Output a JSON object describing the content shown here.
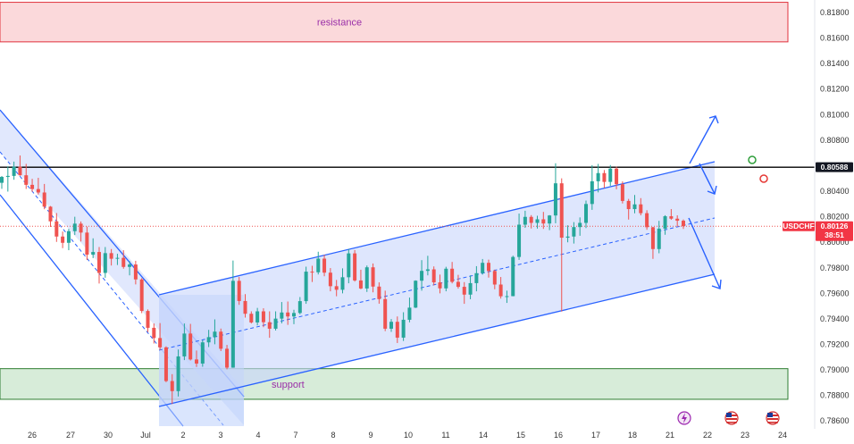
{
  "chart_data": {
    "type": "candlestick",
    "symbol": "USDCHF",
    "current_price": "0.80126",
    "countdown": "38:51",
    "key_level": "0.80588",
    "y_range": [
      0.7856,
      0.819
    ],
    "y_ticks": [
      "0.81800",
      "0.81600",
      "0.81400",
      "0.81200",
      "0.81000",
      "0.80800",
      "0.80600",
      "0.80400",
      "0.80200",
      "0.80000",
      "0.79800",
      "0.79600",
      "0.79400",
      "0.79200",
      "0.79000",
      "0.78800",
      "0.78600"
    ],
    "x_labels": [
      "26",
      "27",
      "30",
      "Jul",
      "2",
      "3",
      "4",
      "7",
      "8",
      "9",
      "10",
      "11",
      "14",
      "15",
      "16",
      "17",
      "18",
      "21",
      "22",
      "23",
      "24"
    ],
    "zones": {
      "resistance": {
        "label": "resistance",
        "low": 0.8157,
        "high": 0.8188
      },
      "support": {
        "label": "support",
        "low": 0.7877,
        "high": 0.7901
      }
    },
    "colors": {
      "up": "#26a69a",
      "down": "#ef5350",
      "channel": "#2962ff",
      "channel_fill": "#dbe5ff",
      "resistance_fill": "#fbd9db",
      "support_fill": "#d7ecd9",
      "tag": "#f23645",
      "level_tag": "#131722"
    },
    "candles": [
      [
        0.80466,
        0.80519,
        0.80419,
        0.80512
      ],
      [
        0.80512,
        0.80595,
        0.80397,
        0.8052
      ],
      [
        0.8052,
        0.80632,
        0.8049,
        0.80592
      ],
      [
        0.80592,
        0.8068,
        0.80521,
        0.80525
      ],
      [
        0.80525,
        0.80614,
        0.80418,
        0.8045
      ],
      [
        0.8045,
        0.80497,
        0.80396,
        0.80417
      ],
      [
        0.80417,
        0.80505,
        0.80374,
        0.8039
      ],
      [
        0.8039,
        0.80457,
        0.80259,
        0.80279
      ],
      [
        0.80279,
        0.80284,
        0.8012,
        0.80164
      ],
      [
        0.80164,
        0.80229,
        0.80003,
        0.80045
      ],
      [
        0.80045,
        0.80084,
        0.79954,
        0.79996
      ],
      [
        0.79996,
        0.80105,
        0.79938,
        0.80087
      ],
      [
        0.80087,
        0.802,
        0.80057,
        0.80146
      ],
      [
        0.80146,
        0.80163,
        0.80006,
        0.80076
      ],
      [
        0.80076,
        0.80123,
        0.79861,
        0.79903
      ],
      [
        0.79903,
        0.80031,
        0.79876,
        0.79924
      ],
      [
        0.79924,
        0.79963,
        0.79677,
        0.7976
      ],
      [
        0.7976,
        0.79963,
        0.79722,
        0.79915
      ],
      [
        0.79915,
        0.79947,
        0.79818,
        0.79871
      ],
      [
        0.79871,
        0.7991,
        0.79822,
        0.79878
      ],
      [
        0.79878,
        0.79938,
        0.79793,
        0.79807
      ],
      [
        0.79807,
        0.79853,
        0.79741,
        0.79826
      ],
      [
        0.79826,
        0.79855,
        0.7967,
        0.79709
      ],
      [
        0.79709,
        0.79719,
        0.79445,
        0.79462
      ],
      [
        0.79462,
        0.79474,
        0.79296,
        0.7933
      ],
      [
        0.7933,
        0.79364,
        0.79207,
        0.7925
      ],
      [
        0.7925,
        0.79367,
        0.79155,
        0.79177
      ],
      [
        0.79177,
        0.79185,
        0.78904,
        0.78913
      ],
      [
        0.78913,
        0.78967,
        0.78733,
        0.78834
      ],
      [
        0.78834,
        0.7916,
        0.78792,
        0.79106
      ],
      [
        0.79106,
        0.79364,
        0.79077,
        0.79285
      ],
      [
        0.79285,
        0.79361,
        0.79074,
        0.79082
      ],
      [
        0.79082,
        0.79152,
        0.79023,
        0.7905
      ],
      [
        0.7905,
        0.79235,
        0.79025,
        0.79216
      ],
      [
        0.79216,
        0.79314,
        0.79179,
        0.79257
      ],
      [
        0.79257,
        0.79396,
        0.79201,
        0.793
      ],
      [
        0.793,
        0.79324,
        0.79148,
        0.79166
      ],
      [
        0.79166,
        0.79196,
        0.79005,
        0.79018
      ],
      [
        0.79018,
        0.79857,
        0.79017,
        0.79698
      ],
      [
        0.79698,
        0.79728,
        0.7951,
        0.7954
      ],
      [
        0.7954,
        0.79594,
        0.7941,
        0.7944
      ],
      [
        0.7944,
        0.79459,
        0.79364,
        0.79372
      ],
      [
        0.79372,
        0.79486,
        0.79349,
        0.79459
      ],
      [
        0.79459,
        0.79483,
        0.79335,
        0.79374
      ],
      [
        0.79374,
        0.79459,
        0.79252,
        0.79323
      ],
      [
        0.79323,
        0.79459,
        0.79309,
        0.79402
      ],
      [
        0.79402,
        0.79532,
        0.79365,
        0.7945
      ],
      [
        0.7945,
        0.79536,
        0.79353,
        0.79419
      ],
      [
        0.79419,
        0.79471,
        0.79358,
        0.79446
      ],
      [
        0.79446,
        0.79571,
        0.79436,
        0.79539
      ],
      [
        0.79539,
        0.79809,
        0.79518,
        0.7977
      ],
      [
        0.7977,
        0.79816,
        0.79689,
        0.79765
      ],
      [
        0.79765,
        0.79926,
        0.79748,
        0.79872
      ],
      [
        0.79872,
        0.79902,
        0.79734,
        0.79762
      ],
      [
        0.79762,
        0.79798,
        0.79616,
        0.79656
      ],
      [
        0.79656,
        0.79705,
        0.79577,
        0.79628
      ],
      [
        0.79628,
        0.79796,
        0.796,
        0.79726
      ],
      [
        0.79726,
        0.79948,
        0.79679,
        0.79913
      ],
      [
        0.79913,
        0.79939,
        0.79692,
        0.79701
      ],
      [
        0.79701,
        0.79785,
        0.79632,
        0.79638
      ],
      [
        0.79638,
        0.79818,
        0.79611,
        0.79804
      ],
      [
        0.79804,
        0.79834,
        0.79608,
        0.79653
      ],
      [
        0.79653,
        0.79686,
        0.79519,
        0.79555
      ],
      [
        0.79555,
        0.79621,
        0.79304,
        0.79323
      ],
      [
        0.79323,
        0.79399,
        0.79298,
        0.79377
      ],
      [
        0.79377,
        0.79419,
        0.79211,
        0.79253
      ],
      [
        0.79253,
        0.79452,
        0.79227,
        0.79393
      ],
      [
        0.79393,
        0.79567,
        0.79373,
        0.79488
      ],
      [
        0.79488,
        0.79702,
        0.79485,
        0.79699
      ],
      [
        0.79699,
        0.7986,
        0.79621,
        0.79776
      ],
      [
        0.79776,
        0.79894,
        0.79741,
        0.79788
      ],
      [
        0.79788,
        0.79811,
        0.79662,
        0.79686
      ],
      [
        0.79686,
        0.79747,
        0.796,
        0.79639
      ],
      [
        0.79639,
        0.79808,
        0.79616,
        0.79793
      ],
      [
        0.79793,
        0.79846,
        0.79678,
        0.7969
      ],
      [
        0.7969,
        0.79745,
        0.79637,
        0.79651
      ],
      [
        0.79651,
        0.79688,
        0.79518,
        0.7959
      ],
      [
        0.7959,
        0.79741,
        0.79554,
        0.7968
      ],
      [
        0.7968,
        0.79813,
        0.79616,
        0.79758
      ],
      [
        0.79758,
        0.79869,
        0.79747,
        0.79839
      ],
      [
        0.79839,
        0.79864,
        0.79723,
        0.79775
      ],
      [
        0.79775,
        0.79786,
        0.79632,
        0.79669
      ],
      [
        0.79669,
        0.79728,
        0.79559,
        0.79577
      ],
      [
        0.79577,
        0.79621,
        0.79525,
        0.79578
      ],
      [
        0.79578,
        0.79895,
        0.79577,
        0.79885
      ],
      [
        0.79885,
        0.80225,
        0.79862,
        0.80138
      ],
      [
        0.80138,
        0.80247,
        0.80113,
        0.80199
      ],
      [
        0.80199,
        0.80213,
        0.80108,
        0.80152
      ],
      [
        0.80152,
        0.80208,
        0.80107,
        0.8018
      ],
      [
        0.8018,
        0.80238,
        0.80105,
        0.80147
      ],
      [
        0.80147,
        0.80213,
        0.80095,
        0.8021
      ],
      [
        0.8021,
        0.80619,
        0.80149,
        0.80462
      ],
      [
        0.80462,
        0.80501,
        0.79457,
        0.80036
      ],
      [
        0.80036,
        0.80133,
        0.8,
        0.80045
      ],
      [
        0.80045,
        0.80158,
        0.7999,
        0.80119
      ],
      [
        0.80119,
        0.80195,
        0.80051,
        0.80152
      ],
      [
        0.80152,
        0.80327,
        0.80112,
        0.803
      ],
      [
        0.803,
        0.80604,
        0.80254,
        0.80478
      ],
      [
        0.80478,
        0.80614,
        0.80391,
        0.80542
      ],
      [
        0.80542,
        0.80566,
        0.80425,
        0.80473
      ],
      [
        0.80473,
        0.80605,
        0.80442,
        0.80577
      ],
      [
        0.80577,
        0.80592,
        0.80415,
        0.80455
      ],
      [
        0.80455,
        0.80477,
        0.80304,
        0.80324
      ],
      [
        0.80324,
        0.8034,
        0.80178,
        0.8026
      ],
      [
        0.8026,
        0.80371,
        0.80227,
        0.80297
      ],
      [
        0.80297,
        0.80346,
        0.80211,
        0.80228
      ],
      [
        0.80228,
        0.80251,
        0.80098,
        0.80118
      ],
      [
        0.80118,
        0.8012,
        0.7987,
        0.79947
      ],
      [
        0.79947,
        0.80168,
        0.79914,
        0.80107
      ],
      [
        0.80107,
        0.80212,
        0.80059,
        0.80204
      ],
      [
        0.80204,
        0.8026,
        0.80176,
        0.80185
      ],
      [
        0.80185,
        0.80211,
        0.80126,
        0.80169
      ],
      [
        0.80169,
        0.80179,
        0.80105,
        0.80126
      ]
    ]
  }
}
